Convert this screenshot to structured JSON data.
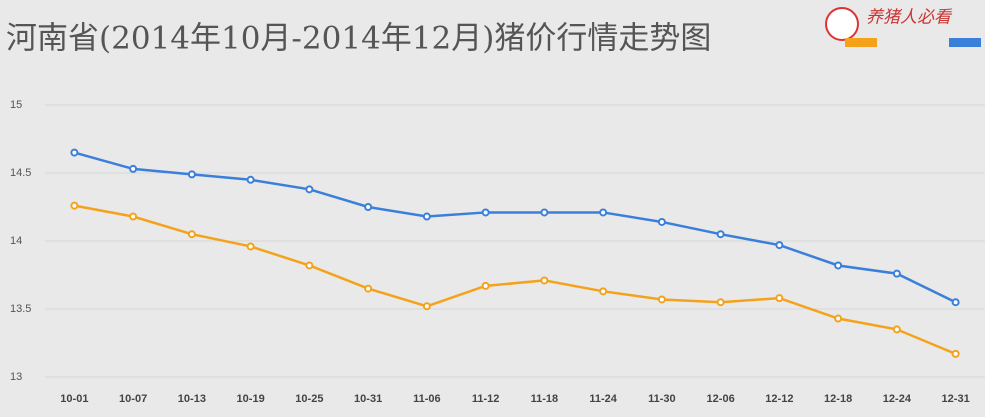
{
  "chart_data": {
    "type": "line",
    "title": "河南省(2014年10月-2014年12月)猪价行情走势图",
    "watermark": "养猪人必看",
    "categories": [
      "10-01",
      "10-07",
      "10-13",
      "10-19",
      "10-25",
      "10-31",
      "11-06",
      "11-12",
      "11-18",
      "11-24",
      "11-30",
      "12-06",
      "12-12",
      "12-18",
      "12-24",
      "12-31"
    ],
    "series": [
      {
        "color": "#f5a21b",
        "values": [
          14.26,
          14.18,
          14.05,
          13.96,
          13.82,
          13.65,
          13.52,
          13.67,
          13.71,
          13.63,
          13.57,
          13.55,
          13.58,
          13.43,
          13.35,
          13.17
        ]
      },
      {
        "color": "#3a7fd9",
        "values": [
          14.65,
          14.53,
          14.49,
          14.45,
          14.38,
          14.25,
          14.18,
          14.21,
          14.21,
          14.21,
          14.14,
          14.05,
          13.97,
          13.82,
          13.76,
          13.55
        ]
      }
    ],
    "ylim": [
      13,
      15
    ],
    "yticks": [
      13,
      13.5,
      14,
      14.5,
      15
    ],
    "grid": true
  }
}
